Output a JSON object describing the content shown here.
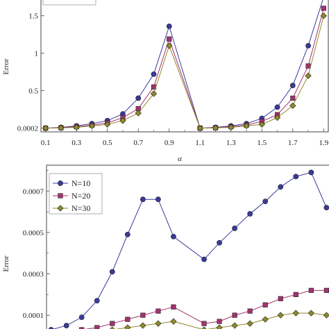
{
  "chart_data": [
    {
      "type": "line",
      "xlabel": "α",
      "ylabel": "Error",
      "xlim": [
        0.07,
        1.93
      ],
      "ylim": [
        -0.05,
        1.72
      ],
      "x_ticks": [
        "0.1",
        "0.3",
        "0.5",
        "0.7",
        "0.9",
        "1.1",
        "1.3",
        "1.5",
        "1.7",
        "1.9"
      ],
      "x_minor_ticks": [
        "0.2",
        "0.4",
        "0.6",
        "0.8",
        "1",
        "1.2",
        "1.4",
        "1.6",
        "1.8"
      ],
      "y_ticks": [
        "0.0002",
        "0.5",
        "1",
        "1.5"
      ],
      "grid": false,
      "legend": "top-left (entries cropped)",
      "x": [
        0.1,
        0.2,
        0.3,
        0.4,
        0.5,
        0.6,
        0.7,
        0.8,
        0.9,
        1.1,
        1.2,
        1.3,
        1.4,
        1.5,
        1.6,
        1.7,
        1.8,
        1.9
      ],
      "series": [
        {
          "values": [
            0.0002,
            0.01,
            0.03,
            0.06,
            0.1,
            0.19,
            0.4,
            0.72,
            1.36,
            0.0002,
            0.01,
            0.03,
            0.06,
            0.13,
            0.28,
            0.57,
            1.1,
            1.75
          ]
        },
        {
          "values": [
            0.0002,
            0.005,
            0.02,
            0.04,
            0.07,
            0.14,
            0.26,
            0.55,
            1.19,
            0.0002,
            0.005,
            0.02,
            0.04,
            0.09,
            0.18,
            0.4,
            0.83,
            1.6
          ]
        },
        {
          "values": [
            0.0002,
            0.003,
            0.01,
            0.03,
            0.05,
            0.1,
            0.2,
            0.46,
            1.1,
            0.0002,
            0.003,
            0.01,
            0.03,
            0.05,
            0.14,
            0.3,
            0.7,
            1.5
          ]
        }
      ],
      "colors": [
        "#3a3a9c",
        "#a3326f",
        "#8e8a2a"
      ],
      "markers": [
        "circle",
        "square",
        "diamond"
      ]
    },
    {
      "type": "line",
      "xlabel": "",
      "ylabel": "Error",
      "xlim": [
        0.07,
        1.93
      ],
      "ylim": [
        2e-05,
        0.000825
      ],
      "y_ticks": [
        {
          "value": 0.0001,
          "label": "0.0001"
        },
        {
          "value": 0.0003,
          "label": "0.0003"
        },
        {
          "value": 0.0005,
          "label": "0.0005"
        },
        {
          "value": 0.0007,
          "label": "0.0007"
        }
      ],
      "grid": false,
      "legend": "top-left",
      "x": [
        0.1,
        0.2,
        0.3,
        0.4,
        0.5,
        0.6,
        0.7,
        0.8,
        0.9,
        1.1,
        1.2,
        1.3,
        1.4,
        1.5,
        1.6,
        1.7,
        1.8,
        1.9
      ],
      "series": [
        {
          "name": "N=10",
          "values": [
            3e-05,
            5e-05,
            9e-05,
            0.00017,
            0.00031,
            0.00049,
            0.00066,
            0.00066,
            0.00048,
            0.00037,
            0.00045,
            0.00052,
            0.00059,
            0.00065,
            0.00072,
            0.00077,
            0.00079,
            0.00062
          ]
        },
        {
          "name": "N=20",
          "values": [
            1e-05,
            2e-05,
            3e-05,
            4e-05,
            6e-05,
            8e-05,
            0.0001,
            0.00012,
            0.00014,
            6e-05,
            7e-05,
            0.0001,
            0.00012,
            0.00015,
            0.00018,
            0.0002,
            0.00022,
            0.00022
          ]
        },
        {
          "name": "N=30",
          "values": [
            1e-05,
            1e-05,
            2e-05,
            2e-05,
            3e-05,
            4e-05,
            5e-05,
            6e-05,
            7e-05,
            3e-05,
            4e-05,
            5e-05,
            6e-05,
            8e-05,
            0.0001,
            0.00011,
            0.00011,
            0.0001
          ]
        }
      ],
      "colors": [
        "#3a3a9c",
        "#a3326f",
        "#8e8a2a"
      ],
      "markers": [
        "circle",
        "square",
        "diamond"
      ]
    }
  ]
}
